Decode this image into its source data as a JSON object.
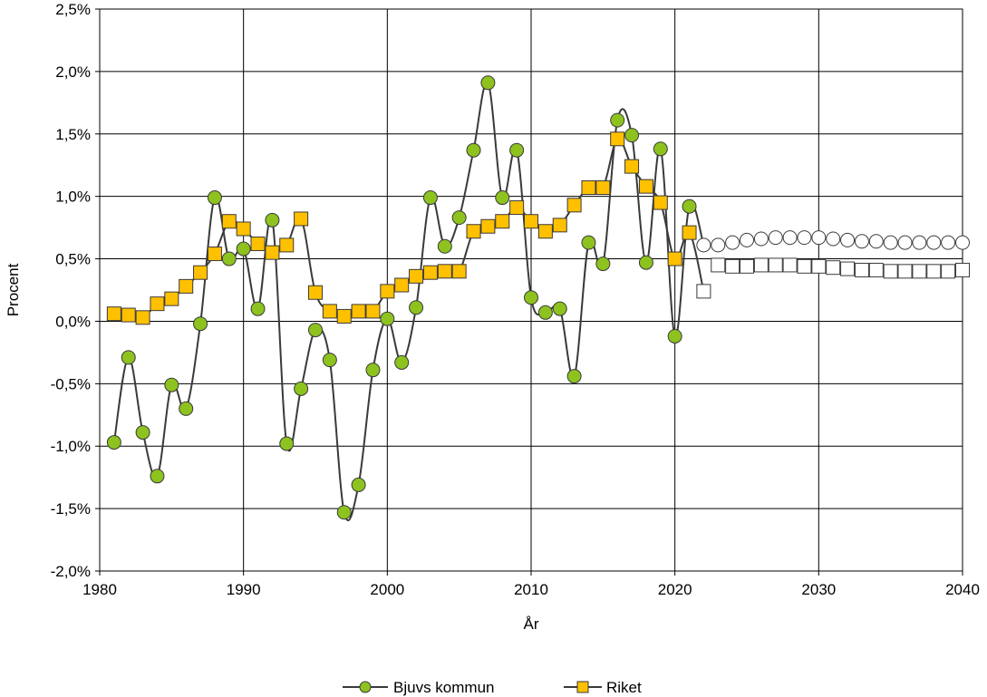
{
  "chart_data": {
    "type": "line",
    "xlabel": "År",
    "ylabel": "Procent",
    "xlim": [
      1980,
      2040
    ],
    "ylim": [
      -2.0,
      2.5
    ],
    "x_ticks": [
      1980,
      1990,
      2000,
      2010,
      2020,
      2030,
      2040
    ],
    "x_tick_labels": [
      "1980",
      "1990",
      "2000",
      "2010",
      "2020",
      "2030",
      "2040"
    ],
    "y_ticks": [
      -2.0,
      -1.5,
      -1.0,
      -0.5,
      0.0,
      0.5,
      1.0,
      1.5,
      2.0,
      2.5
    ],
    "y_tick_labels": [
      "-2,0%",
      "-1,5%",
      "-1,0%",
      "-0,5%",
      "0,0%",
      "0,5%",
      "1,0%",
      "1,5%",
      "2,0%",
      "2,5%"
    ],
    "grid": true,
    "legend_position": "bottom-center",
    "series": [
      {
        "name": "Bjuvs kommun",
        "marker": "circle",
        "color": "#8DC21F",
        "line_color": "#3A3A3A",
        "x": [
          1981,
          1982,
          1983,
          1984,
          1985,
          1986,
          1987,
          1988,
          1989,
          1990,
          1991,
          1992,
          1993,
          1994,
          1995,
          1996,
          1997,
          1998,
          1999,
          2000,
          2001,
          2002,
          2003,
          2004,
          2005,
          2006,
          2007,
          2008,
          2009,
          2010,
          2011,
          2012,
          2013,
          2014,
          2015,
          2016,
          2017,
          2018,
          2019,
          2020,
          2021
        ],
        "values": [
          -0.97,
          -0.29,
          -0.89,
          -1.24,
          -0.51,
          -0.7,
          -0.02,
          0.99,
          0.5,
          0.58,
          0.1,
          0.81,
          -0.98,
          -0.54,
          -0.07,
          -0.31,
          -1.53,
          -1.31,
          -0.39,
          0.02,
          -0.33,
          0.11,
          0.99,
          0.6,
          0.83,
          1.37,
          1.91,
          0.99,
          1.37,
          0.19,
          0.07,
          0.1,
          -0.44,
          0.63,
          0.46,
          1.61,
          1.49,
          0.47,
          1.38,
          -0.12,
          0.92
        ],
        "forecast_x": [
          2022,
          2023,
          2024,
          2025,
          2026,
          2027,
          2028,
          2029,
          2030,
          2031,
          2032,
          2033,
          2034,
          2035,
          2036,
          2037,
          2038,
          2039,
          2040
        ],
        "forecast_values": [
          0.61,
          0.61,
          0.63,
          0.65,
          0.66,
          0.67,
          0.67,
          0.67,
          0.67,
          0.66,
          0.65,
          0.64,
          0.64,
          0.63,
          0.63,
          0.63,
          0.63,
          0.63,
          0.63
        ]
      },
      {
        "name": "Riket",
        "marker": "square",
        "color": "#FFC000",
        "line_color": "#3A3A3A",
        "x": [
          1981,
          1982,
          1983,
          1984,
          1985,
          1986,
          1987,
          1988,
          1989,
          1990,
          1991,
          1992,
          1993,
          1994,
          1995,
          1996,
          1997,
          1998,
          1999,
          2000,
          2001,
          2002,
          2003,
          2004,
          2005,
          2006,
          2007,
          2008,
          2009,
          2010,
          2011,
          2012,
          2013,
          2014,
          2015,
          2016,
          2017,
          2018,
          2019,
          2020,
          2021
        ],
        "values": [
          0.06,
          0.05,
          0.03,
          0.14,
          0.18,
          0.28,
          0.39,
          0.54,
          0.8,
          0.74,
          0.62,
          0.55,
          0.61,
          0.82,
          0.23,
          0.08,
          0.04,
          0.08,
          0.08,
          0.24,
          0.29,
          0.36,
          0.39,
          0.4,
          0.4,
          0.72,
          0.76,
          0.8,
          0.91,
          0.8,
          0.72,
          0.77,
          0.93,
          1.07,
          1.07,
          1.46,
          1.24,
          1.08,
          0.95,
          0.5,
          0.71
        ],
        "forecast_x": [
          2022,
          2023,
          2024,
          2025,
          2026,
          2027,
          2028,
          2029,
          2030,
          2031,
          2032,
          2033,
          2034,
          2035,
          2036,
          2037,
          2038,
          2039,
          2040
        ],
        "forecast_values": [
          0.24,
          0.45,
          0.44,
          0.44,
          0.45,
          0.45,
          0.45,
          0.44,
          0.44,
          0.43,
          0.42,
          0.41,
          0.41,
          0.4,
          0.4,
          0.4,
          0.4,
          0.4,
          0.41
        ]
      }
    ]
  }
}
